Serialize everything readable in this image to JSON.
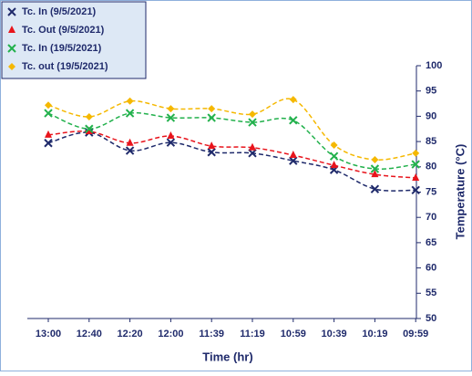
{
  "chart_data": {
    "type": "line",
    "line_style": "dashed",
    "smooth": true,
    "x_label": "Time (hr)",
    "y_label": "Temperature (°C)",
    "y_axis_side": "right",
    "legend": "upper left",
    "categories": [
      "13:00",
      "12:40",
      "12:20",
      "12:00",
      "11:39",
      "11:19",
      "10:59",
      "10:39",
      "10:19",
      "09:59"
    ],
    "ylim": [
      50,
      100
    ],
    "yticks": [
      50,
      55,
      60,
      65,
      70,
      75,
      80,
      85,
      90,
      95,
      100
    ],
    "series": [
      {
        "name": "Tc. In (9/5/2021)",
        "color": "#1f2a6b",
        "marker": "x",
        "values": [
          84.7,
          86.8,
          83.2,
          84.8,
          82.9,
          82.7,
          81.2,
          79.4,
          75.6,
          75.4
        ]
      },
      {
        "name": "Tc. Out (9/5/2021)",
        "color": "#e8141c",
        "marker": "triangle",
        "values": [
          86.3,
          87.0,
          84.7,
          86.1,
          84.1,
          83.8,
          82.3,
          80.3,
          78.5,
          77.8
        ]
      },
      {
        "name": "Tc. In (19/5/2021)",
        "color": "#22b14c",
        "marker": "x",
        "values": [
          90.6,
          87.5,
          90.6,
          89.7,
          89.7,
          88.8,
          89.2,
          82.1,
          79.6,
          80.5
        ]
      },
      {
        "name": "Tc. out (19/5/2021)",
        "color": "#f5b800",
        "marker": "diamond",
        "values": [
          92.2,
          89.9,
          93.0,
          91.5,
          91.5,
          90.4,
          93.3,
          84.3,
          81.4,
          82.7
        ]
      }
    ]
  }
}
